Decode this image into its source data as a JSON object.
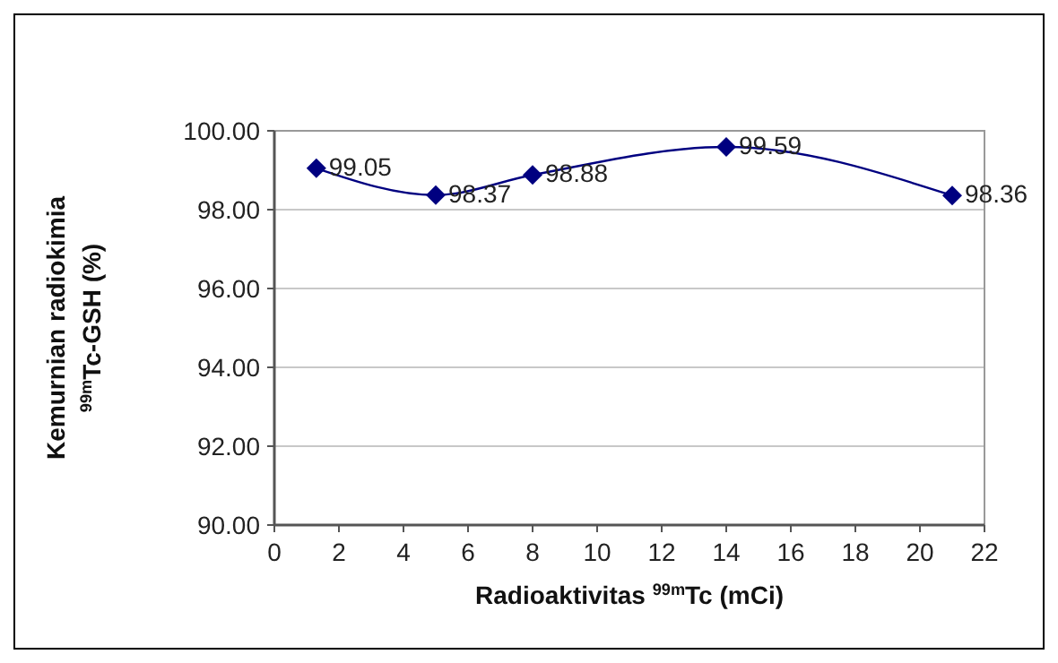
{
  "chart_data": {
    "type": "line",
    "xlabel": "Radioaktivitas $^{99m}$Tc (mCi)",
    "ylabel": "Kemurnian radiokimia\n$^{99m}$Tc-GSH (%)",
    "x": [
      1.3,
      5,
      8,
      14,
      21
    ],
    "series": [
      {
        "color": "#000080",
        "values": [
          99.05,
          98.37,
          98.88,
          99.59,
          98.36
        ]
      }
    ],
    "xlim": [
      0,
      22
    ],
    "xticks": [
      0,
      2,
      4,
      6,
      8,
      10,
      12,
      14,
      16,
      18,
      20,
      22
    ],
    "ylim": [
      90,
      100
    ],
    "yticks": [
      {
        "value": 90,
        "label": "90.00"
      },
      {
        "value": 92,
        "label": "92.00"
      },
      {
        "value": 94,
        "label": "94.00"
      },
      {
        "value": 96,
        "label": "96.00"
      },
      {
        "value": 98,
        "label": "98.00"
      },
      {
        "value": 100,
        "label": "100.00"
      }
    ],
    "grid": "y",
    "marker": "diamond",
    "line_style": "solid",
    "data_labels": true
  }
}
